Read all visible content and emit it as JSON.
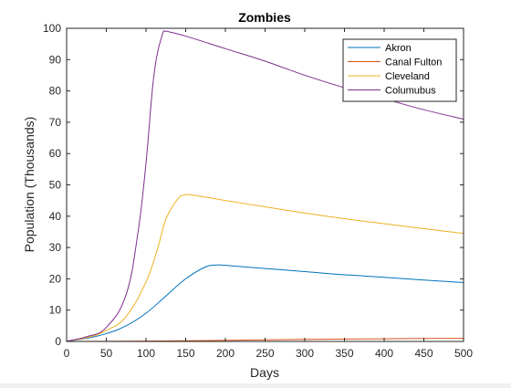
{
  "chart_data": {
    "type": "line",
    "title": "Zombies",
    "xlabel": "Days",
    "ylabel": "Population (Thousands)",
    "xlim": [
      0,
      500
    ],
    "ylim": [
      0,
      100
    ],
    "xticks": [
      0,
      50,
      100,
      150,
      200,
      250,
      300,
      350,
      400,
      450,
      500
    ],
    "yticks": [
      0,
      10,
      20,
      30,
      40,
      50,
      60,
      70,
      80,
      90,
      100
    ],
    "grid": false,
    "legend_position": "top-right",
    "series": [
      {
        "name": "Akron",
        "color": "#0072bd",
        "x": [
          0,
          25,
          50,
          75,
          100,
          125,
          150,
          175,
          190,
          200,
          250,
          300,
          350,
          400,
          450,
          500
        ],
        "y": [
          0.1,
          1.0,
          2.5,
          5.0,
          9.0,
          14.5,
          20.0,
          23.8,
          24.4,
          24.3,
          23.3,
          22.3,
          21.3,
          20.5,
          19.6,
          18.8
        ]
      },
      {
        "name": "Canal Fulton",
        "color": "#d95319",
        "x": [
          0,
          50,
          100,
          150,
          200,
          250,
          300,
          350,
          400,
          450,
          500
        ],
        "y": [
          0,
          0.05,
          0.1,
          0.2,
          0.35,
          0.5,
          0.65,
          0.75,
          0.85,
          0.95,
          1.0
        ]
      },
      {
        "name": "Cleveland",
        "color": "#edb120",
        "x": [
          0,
          25,
          50,
          75,
          100,
          115,
          125,
          140,
          150,
          160,
          200,
          250,
          300,
          350,
          400,
          450,
          500
        ],
        "y": [
          0.1,
          1.2,
          3.5,
          8.0,
          19.0,
          30.0,
          39.0,
          45.5,
          46.8,
          46.7,
          45.0,
          43.0,
          41.0,
          39.2,
          37.6,
          36.0,
          34.5
        ]
      },
      {
        "name": "Columubus",
        "color": "#7e2f8e",
        "x": [
          0,
          25,
          50,
          75,
          90,
          100,
          110,
          120,
          125,
          130,
          150,
          200,
          250,
          300,
          350,
          400,
          450,
          500
        ],
        "y": [
          0.1,
          1.5,
          4.5,
          15.0,
          35.0,
          57.0,
          85.0,
          97.5,
          99.0,
          98.8,
          97.5,
          93.5,
          89.5,
          85.0,
          81.0,
          77.5,
          74.0,
          71.0
        ]
      }
    ]
  }
}
